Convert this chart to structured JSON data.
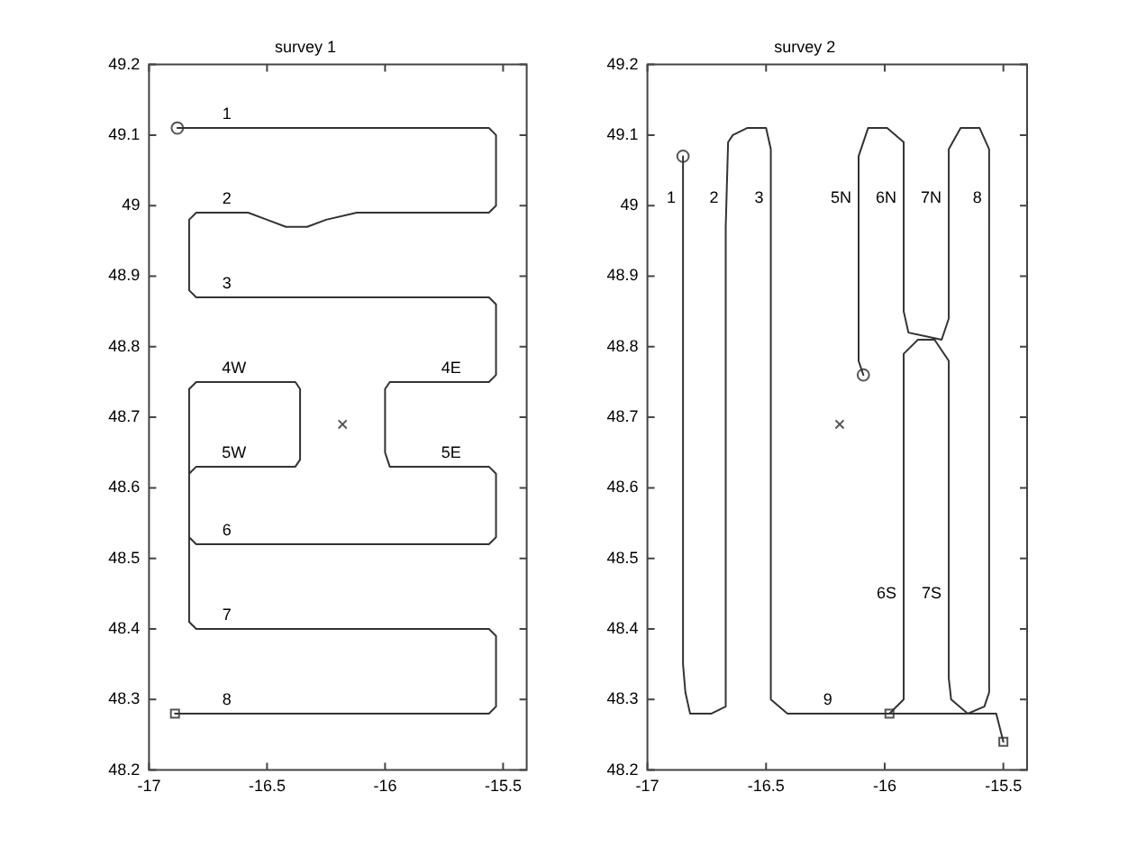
{
  "chart_data": [
    {
      "type": "line",
      "title": "survey 1",
      "xlim": [
        -17,
        -15.4
      ],
      "xticks": [
        -17,
        -16.5,
        -16,
        -15.5
      ],
      "ylim": [
        48.2,
        49.2
      ],
      "yticks": [
        48.2,
        48.3,
        48.4,
        48.5,
        48.6,
        48.7,
        48.8,
        48.9,
        49,
        49.1,
        49.2
      ],
      "series": [
        {
          "color": "#333333",
          "x": [
            -16.88,
            -16.85,
            -15.56,
            -15.53,
            -15.53,
            -15.56,
            -16.12,
            -16.25,
            -16.33,
            -16.42,
            -16.5,
            -16.58,
            -16.8,
            -16.83,
            -16.83,
            -16.8,
            -15.56,
            -15.53,
            -15.53,
            -15.56,
            -15.98,
            -16.0,
            -16.0,
            -15.98,
            -15.56,
            -15.53,
            -15.53,
            -15.56,
            -16.8,
            -16.83,
            -16.83,
            -16.8,
            -16.38,
            -16.36,
            -16.36,
            -16.38,
            -16.8,
            -16.83,
            -16.83,
            -16.8,
            -15.56,
            -15.53,
            -15.53,
            -15.56,
            -16.89
          ],
          "values": [
            49.11,
            49.11,
            49.11,
            49.1,
            49.0,
            48.99,
            48.99,
            48.98,
            48.97,
            48.97,
            48.98,
            48.99,
            48.99,
            48.98,
            48.88,
            48.87,
            48.87,
            48.86,
            48.76,
            48.75,
            48.75,
            48.74,
            48.65,
            48.63,
            48.63,
            48.62,
            48.53,
            48.52,
            48.52,
            48.53,
            48.62,
            48.63,
            48.63,
            48.64,
            48.74,
            48.75,
            48.75,
            48.74,
            48.41,
            48.4,
            48.4,
            48.39,
            48.29,
            48.28,
            48.28
          ]
        },
        {
          "type": "scatter",
          "marker": "circle",
          "color": "#555555",
          "x": [
            -16.88
          ],
          "values": [
            49.11
          ]
        },
        {
          "type": "scatter",
          "marker": "square",
          "color": "#555555",
          "x": [
            -16.89
          ],
          "values": [
            48.28
          ]
        },
        {
          "type": "scatter",
          "marker": "cross",
          "color": "#555555",
          "x": [
            -16.18
          ],
          "values": [
            48.69
          ]
        }
      ],
      "annotations": [
        {
          "text": "1",
          "x": -16.67,
          "y": 49.11
        },
        {
          "text": "2",
          "x": -16.67,
          "y": 48.99
        },
        {
          "text": "3",
          "x": -16.67,
          "y": 48.87
        },
        {
          "text": "4W",
          "x": -16.64,
          "y": 48.75
        },
        {
          "text": "4E",
          "x": -15.72,
          "y": 48.75
        },
        {
          "text": "5W",
          "x": -16.64,
          "y": 48.63
        },
        {
          "text": "5E",
          "x": -15.72,
          "y": 48.63
        },
        {
          "text": "6",
          "x": -16.67,
          "y": 48.52
        },
        {
          "text": "7",
          "x": -16.67,
          "y": 48.4
        },
        {
          "text": "8",
          "x": -16.67,
          "y": 48.28
        }
      ]
    },
    {
      "type": "line",
      "title": "survey 2",
      "xlim": [
        -17,
        -15.4
      ],
      "xticks": [
        -17,
        -16.5,
        -16,
        -15.5
      ],
      "ylim": [
        48.2,
        49.2
      ],
      "yticks": [
        48.2,
        48.3,
        48.4,
        48.5,
        48.6,
        48.7,
        48.8,
        48.9,
        49,
        49.1,
        49.2
      ],
      "series": [
        {
          "color": "#333333",
          "x": [
            -16.85,
            -16.85,
            -16.84,
            -16.82,
            -16.77,
            -16.73,
            -16.67,
            -16.67,
            -16.66,
            -16.64,
            -16.58,
            -16.5,
            -16.48,
            -16.48,
            -16.41,
            -16.37,
            -15.9,
            -15.53,
            -15.5
          ],
          "values": [
            49.07,
            48.35,
            48.31,
            48.28,
            48.28,
            48.28,
            48.29,
            48.97,
            49.09,
            49.1,
            49.11,
            49.11,
            49.08,
            48.3,
            48.28,
            48.28,
            48.28,
            48.28,
            48.24
          ]
        },
        {
          "color": "#333333",
          "x": [
            -16.09,
            -16.11,
            -16.11,
            -16.07,
            -15.99,
            -15.92,
            -15.92,
            -15.9,
            -15.76,
            -15.73,
            -15.73,
            -15.68,
            -15.6,
            -15.56,
            -15.56,
            -15.58,
            -15.65,
            -15.72,
            -15.73,
            -15.73,
            -15.79,
            -15.86,
            -15.92,
            -15.92,
            -15.98
          ],
          "values": [
            48.76,
            48.78,
            49.07,
            49.11,
            49.11,
            49.09,
            48.85,
            48.82,
            48.81,
            48.84,
            49.08,
            49.11,
            49.11,
            49.08,
            48.31,
            48.29,
            48.28,
            48.3,
            48.33,
            48.78,
            48.81,
            48.81,
            48.79,
            48.3,
            48.28
          ]
        },
        {
          "type": "scatter",
          "marker": "circle",
          "color": "#555555",
          "x": [
            -16.85,
            -16.09
          ],
          "values": [
            49.07,
            48.76
          ]
        },
        {
          "type": "scatter",
          "marker": "square",
          "color": "#555555",
          "x": [
            -15.98,
            -15.5
          ],
          "values": [
            48.28,
            48.24
          ]
        },
        {
          "type": "scatter",
          "marker": "cross",
          "color": "#555555",
          "x": [
            -16.19
          ],
          "values": [
            48.69
          ]
        }
      ],
      "annotations": [
        {
          "text": "1",
          "x": -16.85,
          "y": 49.01
        },
        {
          "text": "2",
          "x": -16.67,
          "y": 49.01
        },
        {
          "text": "3",
          "x": -16.48,
          "y": 49.01
        },
        {
          "text": "5N",
          "x": -16.11,
          "y": 49.01
        },
        {
          "text": "6N",
          "x": -15.92,
          "y": 49.01
        },
        {
          "text": "7N",
          "x": -15.73,
          "y": 49.01
        },
        {
          "text": "8",
          "x": -15.56,
          "y": 49.01
        },
        {
          "text": "6S",
          "x": -15.92,
          "y": 48.45
        },
        {
          "text": "7S",
          "x": -15.73,
          "y": 48.45
        },
        {
          "text": "9",
          "x": -16.24,
          "y": 48.28
        }
      ]
    }
  ]
}
